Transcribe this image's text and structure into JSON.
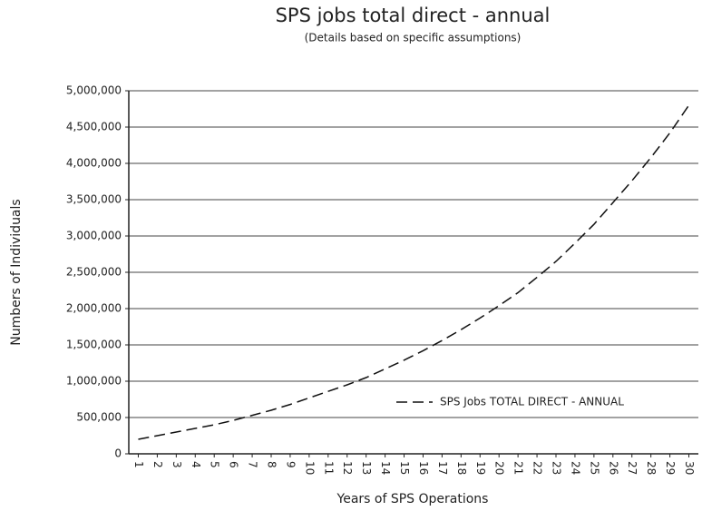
{
  "chart_data": {
    "type": "line",
    "title": "SPS jobs total direct - annual",
    "subtitle": "(Details based on specific assumptions)",
    "x_label": "Years of SPS Operations",
    "y_label": "Numbers of Individuals",
    "categories": [
      "1",
      "2",
      "3",
      "4",
      "5",
      "6",
      "7",
      "8",
      "9",
      "10",
      "11",
      "12",
      "13",
      "14",
      "15",
      "16",
      "17",
      "18",
      "19",
      "20",
      "21",
      "22",
      "23",
      "24",
      "25",
      "26",
      "27",
      "28",
      "29",
      "30"
    ],
    "series": [
      {
        "name": "SPS Jobs TOTAL DIRECT - ANNUAL",
        "color": "#111111",
        "dashed": true,
        "values": [
          200000,
          250000,
          300000,
          350000,
          400000,
          460000,
          530000,
          600000,
          680000,
          770000,
          860000,
          950000,
          1050000,
          1170000,
          1290000,
          1420000,
          1560000,
          1710000,
          1870000,
          2040000,
          2220000,
          2430000,
          2650000,
          2900000,
          3160000,
          3460000,
          3760000,
          4080000,
          4420000,
          4800000
        ]
      }
    ],
    "ylim": [
      0,
      5000000
    ],
    "yticks": [
      0,
      {
        "value": 500000,
        "label": "500,000"
      },
      {
        "value": 1000000,
        "label": "1,000,000"
      },
      {
        "value": 1500000,
        "label": "1,500,000"
      },
      {
        "value": 2000000,
        "label": "2,000,000"
      },
      {
        "value": 2500000,
        "label": "2,500,000"
      },
      {
        "value": 3000000,
        "label": "3,000,000"
      },
      {
        "value": 3500000,
        "label": "3,500,000"
      },
      {
        "value": 4000000,
        "label": "4,000,000"
      },
      {
        "value": 4500000,
        "label": "4,500,000"
      },
      {
        "value": 5000000,
        "label": "5,000,000"
      }
    ],
    "grid": true,
    "legend": "inside-bottom-right"
  }
}
